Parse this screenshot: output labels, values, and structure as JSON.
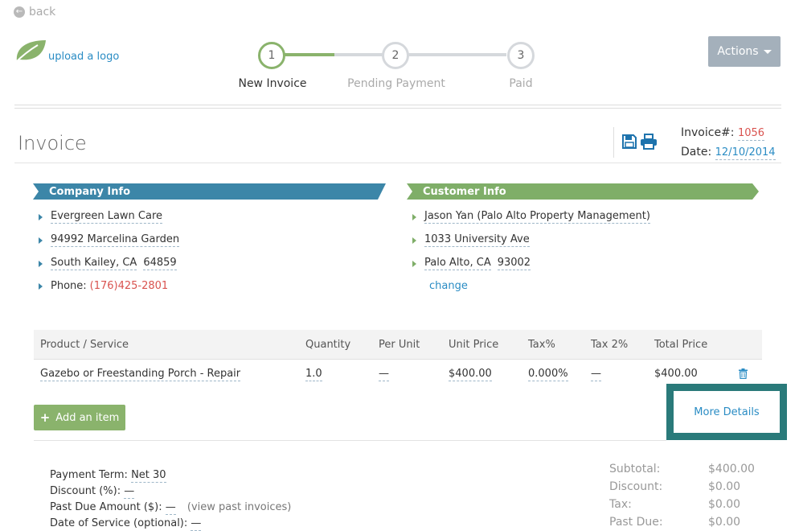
{
  "nav": {
    "back_label": "back",
    "upload_logo_label": "upload a logo"
  },
  "steps": [
    {
      "number": "1",
      "label": "New Invoice"
    },
    {
      "number": "2",
      "label": "Pending Payment"
    },
    {
      "number": "3",
      "label": "Paid"
    }
  ],
  "actions": {
    "label": "Actions"
  },
  "invoice": {
    "title": "Invoice",
    "number_label": "Invoice#:",
    "number": "1056",
    "date_label": "Date:",
    "date": "12/10/2014"
  },
  "company": {
    "header": "Company Info",
    "name": "Evergreen Lawn Care",
    "street": "94992 Marcelina Garden",
    "city_state": "South Kailey, CA",
    "zip": "64859",
    "phone_label": "Phone:",
    "phone": "(176)425-2801"
  },
  "customer": {
    "header": "Customer Info",
    "name": "Jason Yan (Palo Alto Property Management)",
    "street": "1033 University Ave",
    "city_state": "Palo Alto, CA",
    "zip": "93002",
    "change_label": "change"
  },
  "table": {
    "headers": [
      "Product / Service",
      "Quantity",
      "Per Unit",
      "Unit Price",
      "Tax%",
      "Tax 2%",
      "Total Price"
    ],
    "rows": [
      {
        "product": "Gazebo or Freestanding Porch - Repair",
        "quantity": "1.0",
        "per_unit": "—",
        "unit_price": "$400.00",
        "tax": "0.000%",
        "tax2": "—",
        "total": "$400.00"
      }
    ]
  },
  "buttons": {
    "add_item": "Add an item",
    "more_details": "More Details"
  },
  "payment": {
    "term_label": "Payment Term:",
    "term_value": "Net 30",
    "discount_label": "Discount (%):",
    "discount_value": "—",
    "past_due_label": "Past Due Amount ($):",
    "past_due_value": "—",
    "view_past": "(view past invoices)",
    "service_date_label": "Date of Service (optional):",
    "service_date_value": "—"
  },
  "summary": [
    {
      "label": "Subtotal:",
      "value": "$400.00"
    },
    {
      "label": "Discount:",
      "value": "$0.00"
    },
    {
      "label": "Tax:",
      "value": "$0.00"
    },
    {
      "label": "Past Due:",
      "value": "$0.00"
    }
  ],
  "colors": {
    "brand_green": "#8ab36c",
    "brand_blue": "#3c86a8",
    "link": "#2a8cc4",
    "alert_red": "#d9534f"
  }
}
